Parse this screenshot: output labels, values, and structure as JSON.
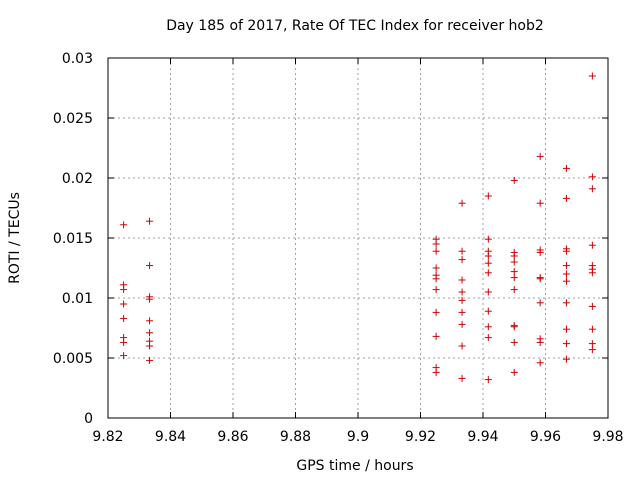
{
  "chart_data": {
    "type": "scatter",
    "title": "Day 185 of 2017, Rate Of TEC Index for receiver hob2",
    "xlabel": "GPS time / hours",
    "ylabel": "ROTI / TECUs",
    "xlim": [
      9.82,
      9.98
    ],
    "ylim": [
      0,
      0.03
    ],
    "x_ticks": [
      "9.82",
      "9.84",
      "9.86",
      "9.88",
      "9.9",
      "9.92",
      "9.94",
      "9.96",
      "9.98"
    ],
    "y_ticks": [
      "0",
      "0.005",
      "0.01",
      "0.015",
      "0.02",
      "0.025",
      "0.03"
    ],
    "grid": true,
    "marker": "plus",
    "colors": {
      "points": "#d00000",
      "grid": "#a0a0a0",
      "axes": "#000000"
    },
    "series": [
      {
        "points": [
          [
            9.825,
            0.0161
          ],
          [
            9.825,
            0.0111
          ],
          [
            9.825,
            0.0107
          ],
          [
            9.825,
            0.0095
          ],
          [
            9.825,
            0.0083
          ],
          [
            9.825,
            0.0067
          ],
          [
            9.825,
            0.0063
          ],
          [
            9.825,
            0.0052
          ],
          [
            9.8333,
            0.0164
          ],
          [
            9.8333,
            0.0127
          ],
          [
            9.8333,
            0.0101
          ],
          [
            9.8333,
            0.0099
          ],
          [
            9.8333,
            0.0081
          ],
          [
            9.8333,
            0.0071
          ],
          [
            9.8333,
            0.0064
          ],
          [
            9.8333,
            0.006
          ],
          [
            9.8333,
            0.0048
          ],
          [
            9.925,
            0.0149
          ],
          [
            9.925,
            0.0145
          ],
          [
            9.925,
            0.0139
          ],
          [
            9.925,
            0.0125
          ],
          [
            9.925,
            0.0119
          ],
          [
            9.925,
            0.0116
          ],
          [
            9.925,
            0.0107
          ],
          [
            9.925,
            0.0088
          ],
          [
            9.925,
            0.0068
          ],
          [
            9.925,
            0.0042
          ],
          [
            9.925,
            0.0038
          ],
          [
            9.9333,
            0.0179
          ],
          [
            9.9333,
            0.0139
          ],
          [
            9.9333,
            0.0132
          ],
          [
            9.9333,
            0.0115
          ],
          [
            9.9333,
            0.0105
          ],
          [
            9.9333,
            0.0098
          ],
          [
            9.9333,
            0.0088
          ],
          [
            9.9333,
            0.0078
          ],
          [
            9.9333,
            0.006
          ],
          [
            9.9333,
            0.0033
          ],
          [
            9.9417,
            0.0185
          ],
          [
            9.9417,
            0.0149
          ],
          [
            9.9417,
            0.0139
          ],
          [
            9.9417,
            0.0135
          ],
          [
            9.9417,
            0.0129
          ],
          [
            9.9417,
            0.0121
          ],
          [
            9.9417,
            0.0105
          ],
          [
            9.9417,
            0.0089
          ],
          [
            9.9417,
            0.0076
          ],
          [
            9.9417,
            0.0067
          ],
          [
            9.9417,
            0.0032
          ],
          [
            9.95,
            0.0198
          ],
          [
            9.95,
            0.0138
          ],
          [
            9.95,
            0.0135
          ],
          [
            9.95,
            0.013
          ],
          [
            9.95,
            0.0122
          ],
          [
            9.95,
            0.0117
          ],
          [
            9.95,
            0.0107
          ],
          [
            9.95,
            0.0077
          ],
          [
            9.95,
            0.0076
          ],
          [
            9.95,
            0.0063
          ],
          [
            9.95,
            0.0038
          ],
          [
            9.9583,
            0.0218
          ],
          [
            9.9583,
            0.0179
          ],
          [
            9.9583,
            0.014
          ],
          [
            9.9583,
            0.0138
          ],
          [
            9.9583,
            0.0117
          ],
          [
            9.9583,
            0.0116
          ],
          [
            9.9583,
            0.0096
          ],
          [
            9.9583,
            0.0066
          ],
          [
            9.9583,
            0.0063
          ],
          [
            9.9583,
            0.0046
          ],
          [
            9.9667,
            0.0208
          ],
          [
            9.9667,
            0.0183
          ],
          [
            9.9667,
            0.0141
          ],
          [
            9.9667,
            0.0139
          ],
          [
            9.9667,
            0.0127
          ],
          [
            9.9667,
            0.012
          ],
          [
            9.9667,
            0.0114
          ],
          [
            9.9667,
            0.0096
          ],
          [
            9.9667,
            0.0074
          ],
          [
            9.9667,
            0.0062
          ],
          [
            9.9667,
            0.0049
          ],
          [
            9.975,
            0.0285
          ],
          [
            9.975,
            0.0201
          ],
          [
            9.975,
            0.0191
          ],
          [
            9.975,
            0.0144
          ],
          [
            9.975,
            0.0127
          ],
          [
            9.975,
            0.0124
          ],
          [
            9.975,
            0.0121
          ],
          [
            9.975,
            0.0093
          ],
          [
            9.975,
            0.0074
          ],
          [
            9.975,
            0.0062
          ],
          [
            9.975,
            0.0057
          ]
        ]
      }
    ]
  }
}
